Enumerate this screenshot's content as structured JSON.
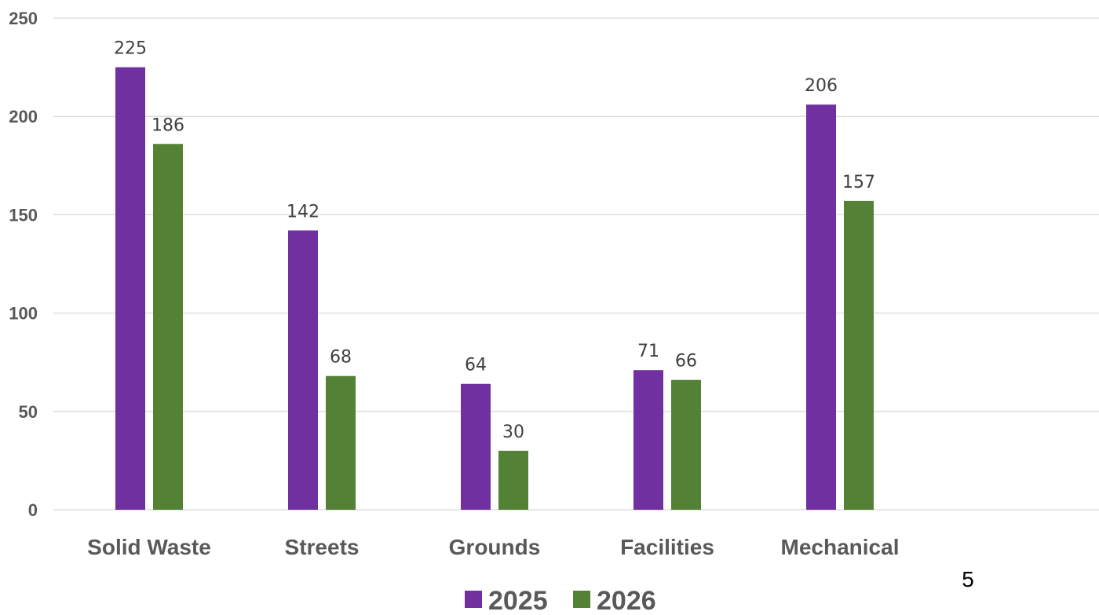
{
  "chart_data": {
    "type": "bar",
    "categories": [
      "Solid Waste",
      "Streets",
      "Grounds",
      "Facilities",
      "Mechanical"
    ],
    "series": [
      {
        "name": "2025",
        "values": [
          225,
          142,
          64,
          71,
          206
        ],
        "color": "#7030a0"
      },
      {
        "name": "2026",
        "values": [
          186,
          68,
          30,
          66,
          157
        ],
        "color": "#538135"
      }
    ],
    "yticks": [
      0,
      50,
      100,
      150,
      200,
      250
    ],
    "ylim": [
      0,
      250
    ],
    "title": "",
    "xlabel": "",
    "ylabel": "",
    "grid": true,
    "legend_position": "bottom",
    "data_labels": true
  },
  "page_number": "5"
}
